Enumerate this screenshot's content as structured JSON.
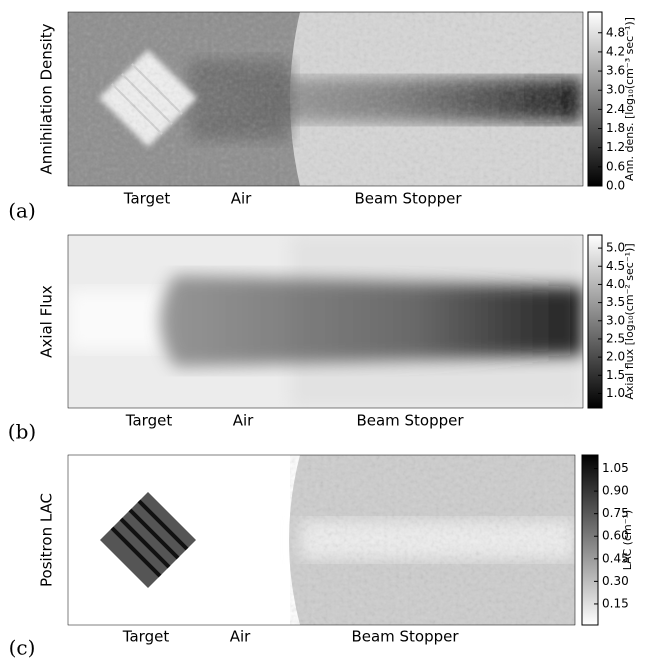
{
  "chart_data": [
    {
      "type": "heatmap",
      "panel": "(a)",
      "ylabel": "Annihilation Density",
      "categories": [
        "Target",
        "Air",
        "Beam Stopper"
      ],
      "colorbar_label": "Ann. dens. [log₁₀(cm⁻³ sec⁻¹)]",
      "colormap": "gray",
      "ylim": [
        0,
        5.45
      ],
      "yticks": [
        {
          "value": 0,
          "label": "0.0"
        },
        0.6,
        1.2,
        1.8,
        2.4,
        {
          "value": 3,
          "label": "3.0"
        },
        3.6,
        4.2,
        4.8
      ]
    },
    {
      "type": "heatmap",
      "panel": "(b)",
      "ylabel": "Axial Flux",
      "categories": [
        "Target",
        "Air",
        "Beam Stopper"
      ],
      "colorbar_label": "Axial flux [log₁₀(cm⁻² sec⁻¹)]",
      "colormap": "gray",
      "ylim": [
        0.6,
        5.36
      ],
      "yticks": [
        {
          "value": 1,
          "label": "1.0"
        },
        1.5,
        {
          "value": 2,
          "label": "2.0"
        },
        2.5,
        {
          "value": 3,
          "label": "3.0"
        },
        3.5,
        {
          "value": 4,
          "label": "4.0"
        },
        4.5,
        {
          "value": 5,
          "label": "5.0"
        }
      ]
    },
    {
      "type": "heatmap",
      "panel": "(c)",
      "ylabel": "Positron LAC",
      "categories": [
        "Target",
        "Air",
        "Beam Stopper"
      ],
      "colorbar_label": "LAC (cm⁻¹)",
      "colormap": "gray_r",
      "ylim": [
        0.01,
        1.14
      ],
      "yticks": [
        0.15,
        {
          "value": 0.3,
          "label": "0.30"
        },
        0.45,
        {
          "value": 0.6,
          "label": "0.60"
        },
        0.75,
        {
          "value": 0.9,
          "label": "0.90"
        },
        1.05
      ]
    }
  ]
}
